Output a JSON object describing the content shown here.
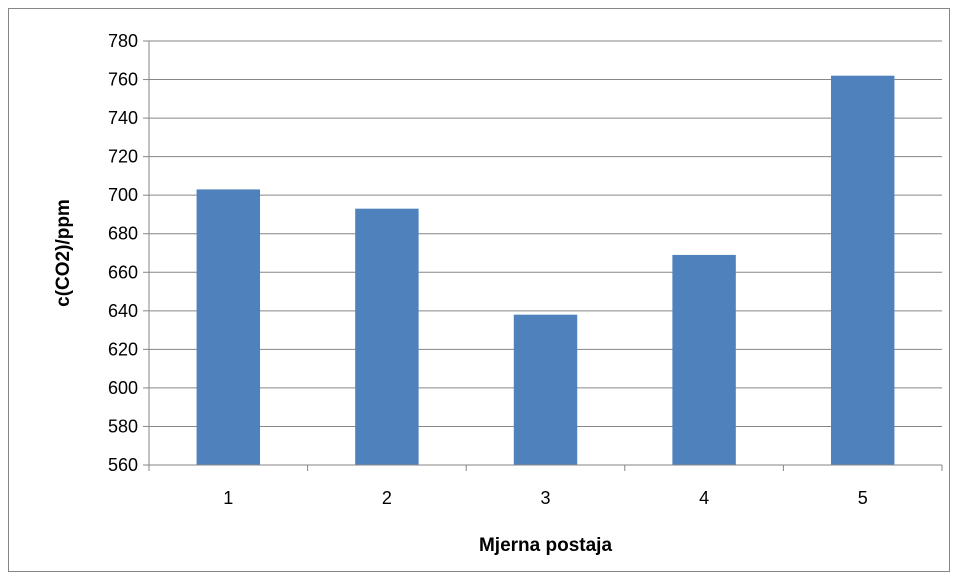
{
  "chart_data": {
    "type": "bar",
    "title": "",
    "xlabel": "Mjerna postaja",
    "ylabel": "c(CO2)/ppm",
    "categories": [
      "1",
      "2",
      "3",
      "4",
      "5"
    ],
    "values": [
      703,
      693,
      638,
      669,
      762
    ],
    "ylim": [
      560,
      780
    ],
    "yticks": [
      560,
      580,
      600,
      620,
      640,
      660,
      680,
      700,
      720,
      740,
      760,
      780
    ],
    "grid": true,
    "legend": "none",
    "bar_color": "#4F81BD",
    "grid_color": "#868686",
    "axis_color": "#868686"
  }
}
